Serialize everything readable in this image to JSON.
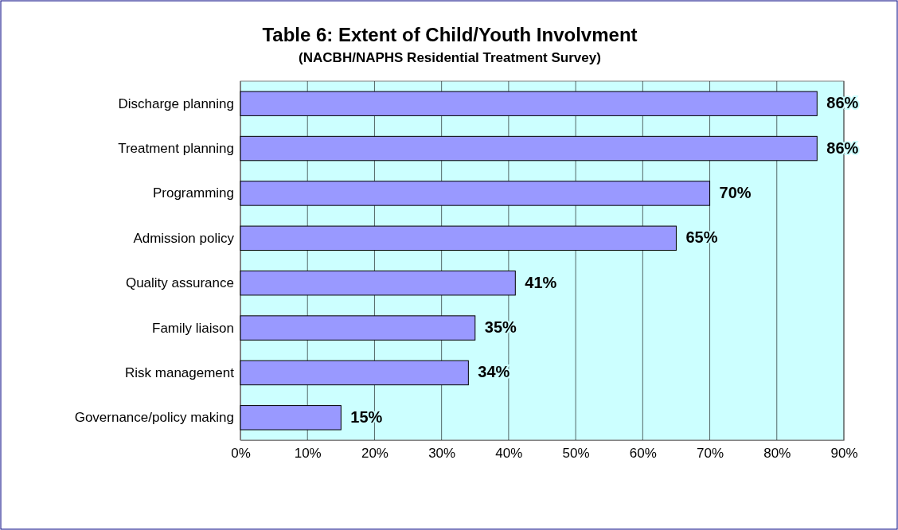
{
  "chart_data": {
    "type": "bar",
    "orientation": "horizontal",
    "title": "Table 6: Extent of Child/Youth Involvment",
    "subtitle": "(NACBH/NAPHS Residential Treatment Survey)",
    "categories": [
      "Discharge planning",
      "Treatment planning",
      "Programming",
      "Admission policy",
      "Quality assurance",
      "Family liaison",
      "Risk management",
      "Governance/policy making"
    ],
    "values": [
      86,
      86,
      70,
      65,
      41,
      35,
      34,
      15
    ],
    "value_labels": [
      "86%",
      "86%",
      "70%",
      "65%",
      "41%",
      "35%",
      "34%",
      "15%"
    ],
    "color": "#9999ff",
    "xlim": [
      0,
      90
    ],
    "xticks": [
      {
        "value": 0,
        "label": "0%"
      },
      {
        "value": 10,
        "label": "10%"
      },
      {
        "value": 20,
        "label": "20%"
      },
      {
        "value": 30,
        "label": "30%"
      },
      {
        "value": 40,
        "label": "40%"
      },
      {
        "value": 50,
        "label": "50%"
      },
      {
        "value": 60,
        "label": "60%"
      },
      {
        "value": 70,
        "label": "70%"
      },
      {
        "value": 80,
        "label": "80%"
      },
      {
        "value": 90,
        "label": "90%"
      }
    ],
    "grid": "x"
  }
}
